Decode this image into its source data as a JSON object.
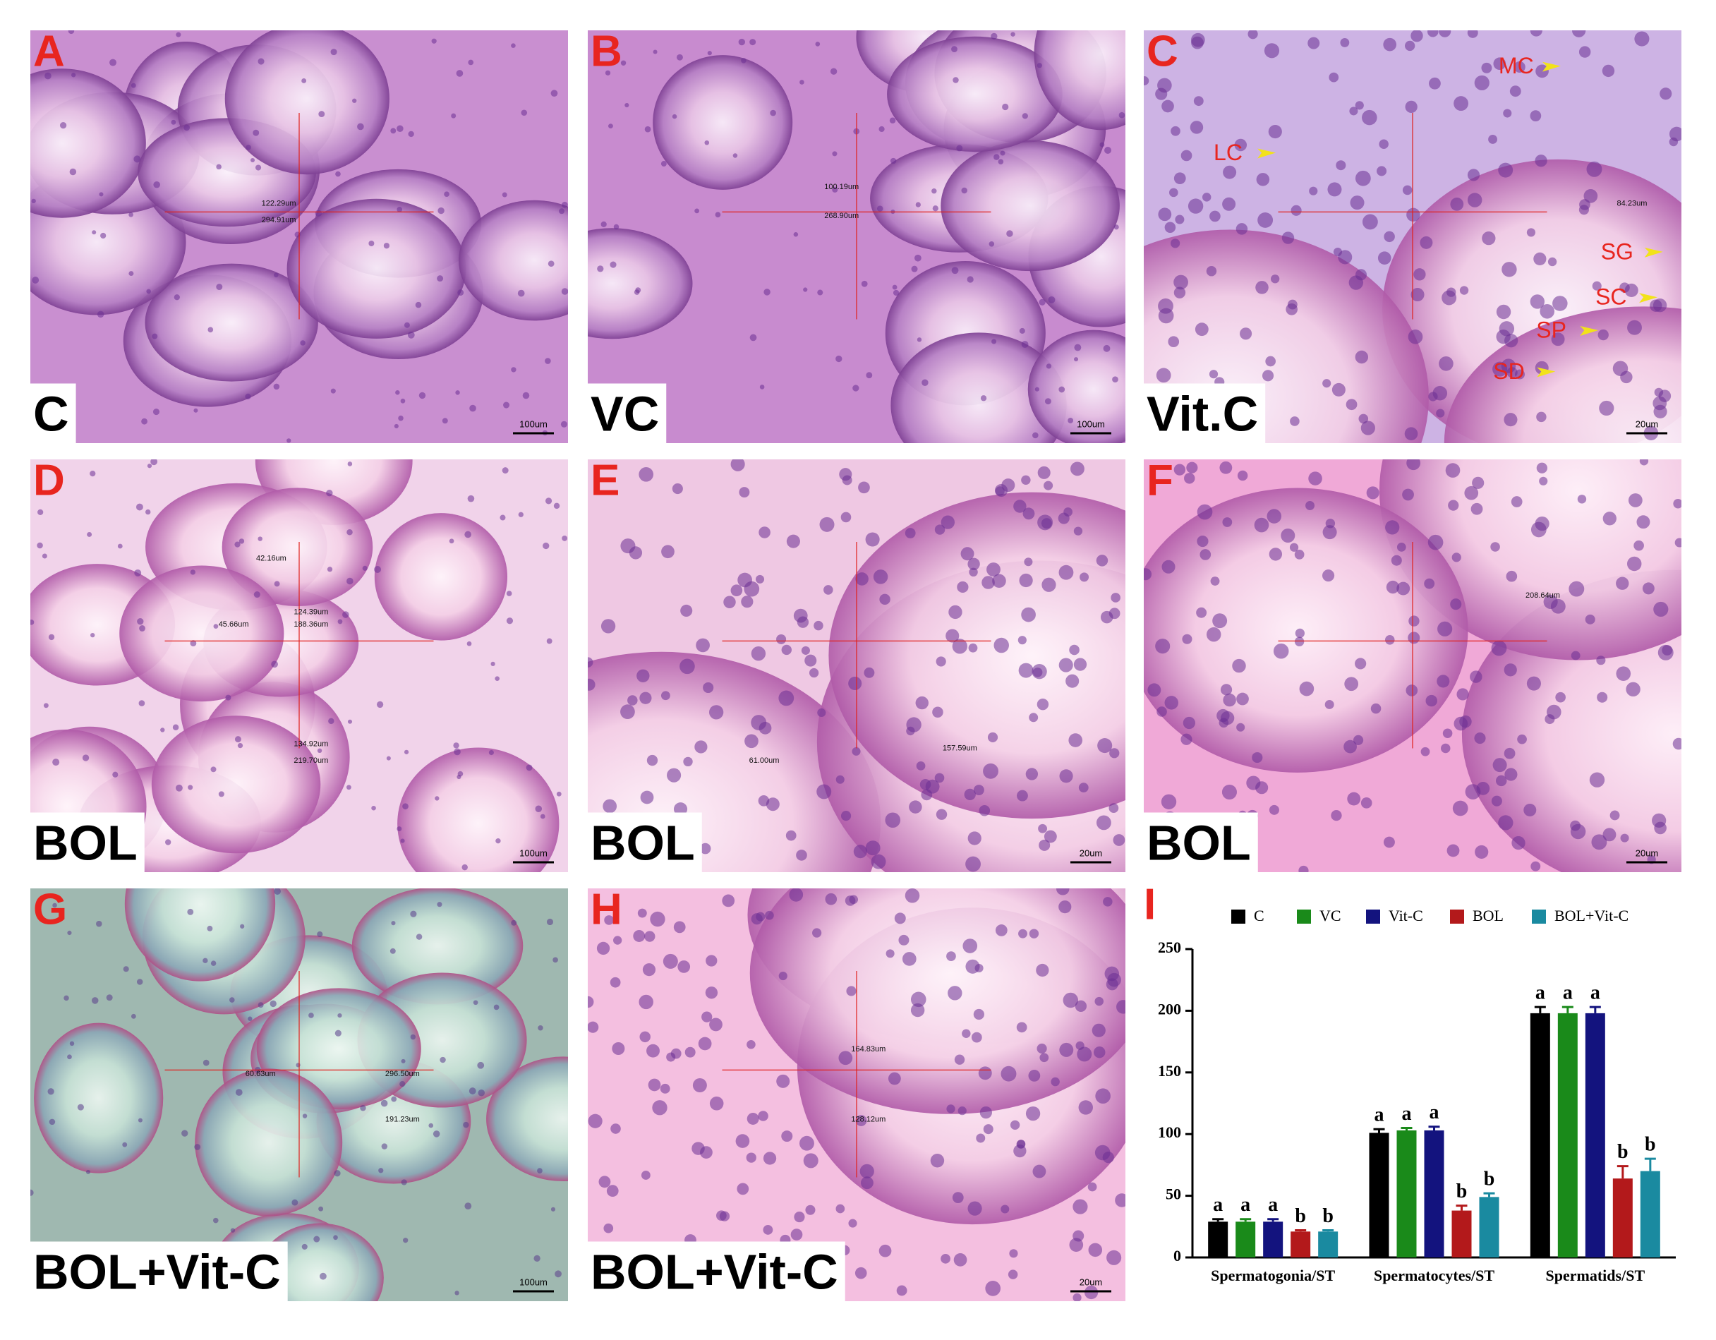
{
  "panels": [
    {
      "letter": "A",
      "group": "C",
      "scale_bar": "100um",
      "measurements": [
        "122.29um",
        "294.91um"
      ],
      "annotations": []
    },
    {
      "letter": "B",
      "group": "VC",
      "scale_bar": "100um",
      "measurements": [
        "100.19um",
        "268.90um"
      ],
      "annotations": []
    },
    {
      "letter": "C",
      "group": "Vit.C",
      "scale_bar": "20um",
      "measurements": [
        "84.23um"
      ],
      "annotations": [
        "MC",
        "LC",
        "SG",
        "SC",
        "SP",
        "SD"
      ]
    },
    {
      "letter": "D",
      "group": "BOL",
      "scale_bar": "100um",
      "measurements": [
        "42.16um",
        "45.66um",
        "124.39um",
        "188.36um",
        "134.92um",
        "219.70um"
      ],
      "annotations": []
    },
    {
      "letter": "E",
      "group": "BOL",
      "scale_bar": "20um",
      "measurements": [
        "61.00um",
        "157.59um"
      ],
      "annotations": []
    },
    {
      "letter": "F",
      "group": "BOL",
      "scale_bar": "20um",
      "measurements": [
        "208.64um"
      ],
      "annotations": []
    },
    {
      "letter": "G",
      "group": "BOL+Vit-C",
      "scale_bar": "100um",
      "measurements": [
        "60.63um",
        "296.50um",
        "191.23um"
      ],
      "annotations": []
    },
    {
      "letter": "H",
      "group": "BOL+Vit-C",
      "scale_bar": "20um",
      "measurements": [
        "164.83um",
        "128.12um"
      ],
      "annotations": []
    }
  ],
  "chart_data": {
    "type": "bar",
    "label": "I",
    "categories": [
      "Spermatogonia/ST",
      "Spermatocytes/ST",
      "Spermatids/ST"
    ],
    "series": [
      {
        "name": "C",
        "color": "#000000",
        "values": [
          29,
          101,
          198
        ],
        "errors": [
          2,
          3,
          5
        ],
        "value_labels": [
          "a",
          "a",
          "a"
        ]
      },
      {
        "name": "VC",
        "color": "#1a8a1a",
        "values": [
          29,
          103,
          198
        ],
        "errors": [
          2,
          2,
          5
        ],
        "value_labels": [
          "a",
          "a",
          "a"
        ]
      },
      {
        "name": "Vit-C",
        "color": "#13137e",
        "values": [
          29,
          103,
          198
        ],
        "errors": [
          2,
          3,
          5
        ],
        "value_labels": [
          "a",
          "a",
          "a"
        ]
      },
      {
        "name": "BOL",
        "color": "#b3191b",
        "values": [
          21,
          38,
          64
        ],
        "errors": [
          1,
          4,
          10
        ],
        "value_labels": [
          "b",
          "b",
          "b"
        ]
      },
      {
        "name": "BOL+Vit-C",
        "color": "#1a8aa0",
        "values": [
          21,
          49,
          70
        ],
        "errors": [
          1,
          3,
          10
        ],
        "value_labels": [
          "b",
          "b",
          "b"
        ]
      }
    ],
    "ylim": [
      0,
      250
    ],
    "yticks": [
      0,
      50,
      100,
      150,
      200,
      250
    ]
  }
}
